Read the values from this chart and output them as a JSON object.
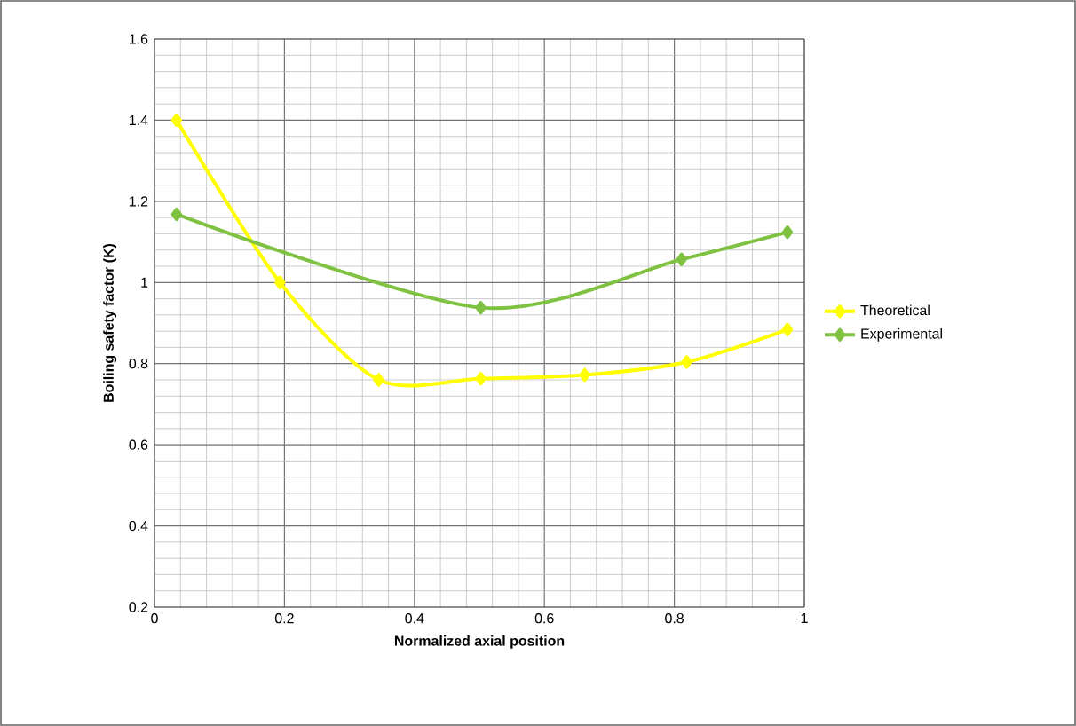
{
  "chart_data": {
    "type": "line",
    "xlabel": "Normalized axial position",
    "ylabel": "Boiling safety factor (K)",
    "xlim": [
      0,
      1
    ],
    "xticks": [
      0,
      0.2,
      0.4,
      0.6,
      0.8,
      1
    ],
    "ylim": [
      0.2,
      1.6
    ],
    "yticks": [
      0.2,
      0.4,
      0.6,
      0.8,
      1,
      1.2,
      1.4,
      1.6
    ],
    "grid": true,
    "legend": "right",
    "marker": "diamond",
    "series": [
      {
        "name": "Theoretical",
        "color": "#ffff00",
        "x": [
          0.034,
          0.193,
          0.345,
          0.502,
          0.662,
          0.819,
          0.974
        ],
        "values": [
          1.4,
          1.0,
          0.76,
          0.763,
          0.772,
          0.804,
          0.884
        ]
      },
      {
        "name": "Experimental",
        "color": "#7fc241",
        "x": [
          0.034,
          0.502,
          0.811,
          0.974
        ],
        "values": [
          1.168,
          0.938,
          1.057,
          1.124
        ]
      }
    ]
  }
}
